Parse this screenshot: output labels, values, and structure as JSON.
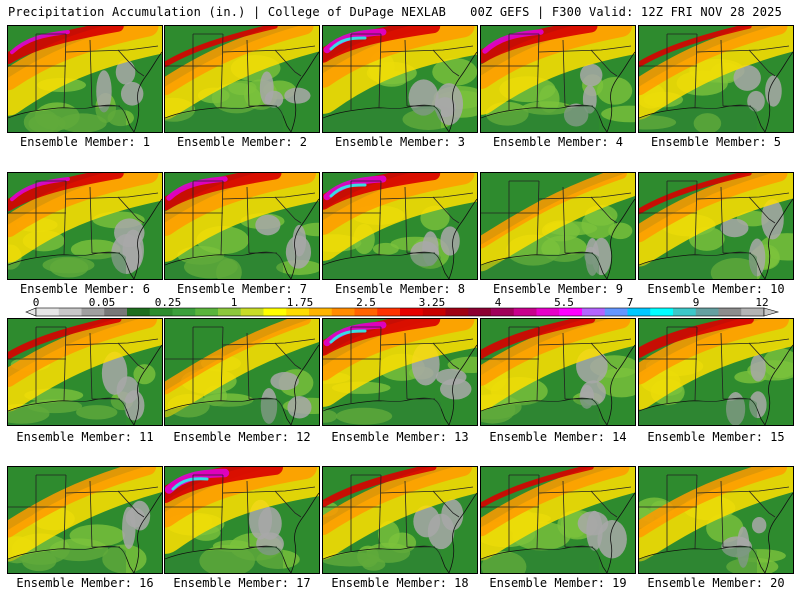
{
  "header": {
    "left": "Precipitation Accumulation (in.) | College of DuPage NEXLAB",
    "right": "00Z GEFS | F300 Valid: 12Z FRI NOV 28 2025"
  },
  "members": [
    {
      "label": "Ensemble Member: 1",
      "level": 0.75
    },
    {
      "label": "Ensemble Member: 2",
      "level": 0.55
    },
    {
      "label": "Ensemble Member: 3",
      "level": 0.85
    },
    {
      "label": "Ensemble Member: 4",
      "level": 0.8
    },
    {
      "label": "Ensemble Member: 5",
      "level": 0.55
    },
    {
      "label": "Ensemble Member: 6",
      "level": 0.75
    },
    {
      "label": "Ensemble Member: 7",
      "level": 0.8
    },
    {
      "label": "Ensemble Member: 8",
      "level": 0.85
    },
    {
      "label": "Ensemble Member: 9",
      "level": 0.3
    },
    {
      "label": "Ensemble Member: 10",
      "level": 0.55
    },
    {
      "label": "Ensemble Member: 11",
      "level": 0.6
    },
    {
      "label": "Ensemble Member: 12",
      "level": 0.3
    },
    {
      "label": "Ensemble Member: 13",
      "level": 0.85
    },
    {
      "label": "Ensemble Member: 14",
      "level": 0.65
    },
    {
      "label": "Ensemble Member: 15",
      "level": 0.7
    },
    {
      "label": "Ensemble Member: 16",
      "level": 0.5
    },
    {
      "label": "Ensemble Member: 17",
      "level": 0.9
    },
    {
      "label": "Ensemble Member: 18",
      "level": 0.6
    },
    {
      "label": "Ensemble Member: 19",
      "level": 0.55
    },
    {
      "label": "Ensemble Member: 20",
      "level": 0.5
    }
  ],
  "colorbar": {
    "ticks": [
      "0",
      "0.05",
      "0.25",
      "1",
      "1.75",
      "2.5",
      "3.25",
      "4",
      "5.5",
      "7",
      "9",
      "12"
    ],
    "colors": [
      "#e6e6e6",
      "#c8c8c8",
      "#a0a0a0",
      "#787878",
      "#1e6e1e",
      "#2d8c2d",
      "#3ca03c",
      "#5ab43c",
      "#8cc83c",
      "#c8dc28",
      "#ffff00",
      "#ffdc00",
      "#ffb400",
      "#ff8c00",
      "#ff6400",
      "#ff3200",
      "#e60000",
      "#c80000",
      "#a00014",
      "#8c0032",
      "#a0005a",
      "#c8008c",
      "#e600c8",
      "#ff00ff",
      "#b464ff",
      "#6496ff",
      "#00c8ff",
      "#00ffff",
      "#3cc8c8",
      "#64a0a0",
      "#8c8c8c",
      "#b4b4b4"
    ]
  }
}
